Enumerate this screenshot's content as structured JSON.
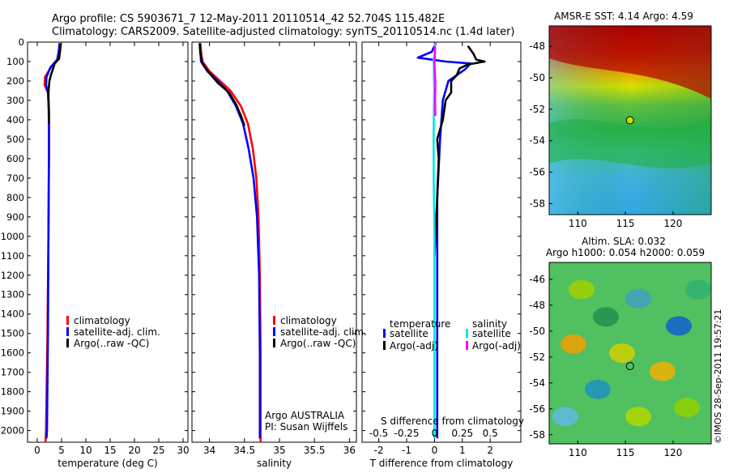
{
  "header": {
    "line1": "Argo profile: CS 5903671_7 12-May-2011 20110514_42 52.704S 115.482E",
    "line2": "Climatology: CARS2009. Satellite-adjusted climatology: synTS_20110514.nc (1.4d later)"
  },
  "footer_credit": "©IMOS 28-Sep-2011 19:57:21",
  "colors": {
    "climatology": "#ff0000",
    "satellite": "#0000ff",
    "argo": "#000000",
    "s_satellite": "#00e5e5",
    "s_argo": "#ff00ff"
  },
  "chart_data": [
    {
      "type": "line",
      "name_id": "temperature-panel",
      "xlabel": "temperature (deg C)",
      "xlim": [
        -2,
        31
      ],
      "ylim": [
        2060,
        0
      ],
      "xticks": [
        "0",
        "5",
        "10",
        "15",
        "20",
        "25",
        "30"
      ],
      "xtick_values": [
        0,
        5,
        10,
        15,
        20,
        25,
        30
      ],
      "yticks": [
        "0",
        "100",
        "200",
        "300",
        "400",
        "500",
        "600",
        "700",
        "800",
        "900",
        "1000",
        "1100",
        "1200",
        "1300",
        "1400",
        "1500",
        "1600",
        "1700",
        "1800",
        "1900",
        "2000"
      ],
      "ytick_values": [
        0,
        100,
        200,
        300,
        400,
        500,
        600,
        700,
        800,
        900,
        1000,
        1100,
        1200,
        1300,
        1400,
        1500,
        1600,
        1700,
        1800,
        1900,
        2000
      ],
      "legend": [
        "climatology",
        "satellite-adj. clim.",
        "Argo(..raw -QC)"
      ],
      "series": [
        {
          "name": "climatology",
          "color": "#ff0000",
          "points": [
            [
              4.9,
              5
            ],
            [
              4.7,
              50
            ],
            [
              4.3,
              90
            ],
            [
              2.8,
              130
            ],
            [
              1.6,
              180
            ],
            [
              1.5,
              220
            ],
            [
              2.2,
              260
            ],
            [
              2.4,
              350
            ],
            [
              2.4,
              600
            ],
            [
              2.3,
              1000
            ],
            [
              2.1,
              1500
            ],
            [
              1.8,
              2000
            ],
            [
              1.7,
              2060
            ]
          ]
        },
        {
          "name": "satellite-adj. clim.",
          "color": "#0000ff",
          "points": [
            [
              4.6,
              5
            ],
            [
              4.4,
              50
            ],
            [
              4.1,
              90
            ],
            [
              2.7,
              130
            ],
            [
              1.9,
              180
            ],
            [
              1.8,
              220
            ],
            [
              2.2,
              260
            ],
            [
              2.4,
              350
            ],
            [
              2.4,
              600
            ],
            [
              2.3,
              1000
            ],
            [
              2.2,
              1500
            ],
            [
              2.0,
              2000
            ],
            [
              1.9,
              2040
            ]
          ]
        },
        {
          "name": "Argo(..raw -QC)",
          "color": "#000000",
          "points": [
            [
              4.7,
              10
            ],
            [
              4.6,
              60
            ],
            [
              4.5,
              85
            ],
            [
              3.6,
              110
            ],
            [
              3.2,
              140
            ],
            [
              2.8,
              170
            ],
            [
              2.5,
              200
            ],
            [
              2.3,
              260
            ],
            [
              2.4,
              420
            ]
          ]
        }
      ]
    },
    {
      "type": "line",
      "name_id": "salinity-panel",
      "xlabel": "salinity",
      "xlim": [
        33.75,
        36.1
      ],
      "ylim": [
        2060,
        0
      ],
      "xticks": [
        "34",
        "34.5",
        "35",
        "35.5",
        "36"
      ],
      "xtick_values": [
        34,
        34.5,
        35,
        35.5,
        36
      ],
      "legend": [
        "climatology",
        "satellite-adj. clim.",
        "Argo(..raw -QC)"
      ],
      "annotation": [
        "Argo AUSTRALIA",
        "PI: Susan Wijffels"
      ],
      "series": [
        {
          "name": "climatology",
          "color": "#ff0000",
          "points": [
            [
              33.87,
              5
            ],
            [
              33.88,
              50
            ],
            [
              33.9,
              100
            ],
            [
              34.0,
              150
            ],
            [
              34.15,
              200
            ],
            [
              34.3,
              250
            ],
            [
              34.45,
              330
            ],
            [
              34.55,
              420
            ],
            [
              34.62,
              550
            ],
            [
              34.67,
              700
            ],
            [
              34.7,
              900
            ],
            [
              34.72,
              1200
            ],
            [
              34.73,
              1600
            ],
            [
              34.73,
              2000
            ],
            [
              34.73,
              2060
            ]
          ]
        },
        {
          "name": "satellite-adj. clim.",
          "color": "#0000ff",
          "points": [
            [
              33.86,
              5
            ],
            [
              33.87,
              50
            ],
            [
              33.88,
              100
            ],
            [
              33.97,
              150
            ],
            [
              34.12,
              200
            ],
            [
              34.25,
              250
            ],
            [
              34.38,
              330
            ],
            [
              34.48,
              420
            ],
            [
              34.56,
              550
            ],
            [
              34.63,
              700
            ],
            [
              34.68,
              900
            ],
            [
              34.71,
              1200
            ],
            [
              34.72,
              1600
            ],
            [
              34.72,
              2000
            ],
            [
              34.72,
              2040
            ]
          ]
        },
        {
          "name": "Argo(..raw -QC)",
          "color": "#000000",
          "points": [
            [
              33.86,
              10
            ],
            [
              33.87,
              60
            ],
            [
              33.9,
              110
            ],
            [
              34.0,
              160
            ],
            [
              34.12,
              210
            ],
            [
              34.28,
              260
            ],
            [
              34.38,
              320
            ],
            [
              34.45,
              380
            ],
            [
              34.5,
              430
            ]
          ]
        }
      ]
    },
    {
      "type": "line",
      "name_id": "difference-panel",
      "xlabel": "T difference from climatology",
      "xlabel_top": "S difference from climatology",
      "xlim": [
        -2.6,
        3.1
      ],
      "ylim": [
        2060,
        0
      ],
      "xticks": [
        "-2",
        "-1",
        "0",
        "1",
        "2"
      ],
      "xtick_values": [
        -2,
        -1,
        0,
        1,
        2
      ],
      "s_xticks": [
        "-0.5",
        "-0.25",
        "0",
        "0.25",
        "0.5"
      ],
      "s_xtick_values": [
        -0.5,
        -0.25,
        0,
        0.25,
        0.5
      ],
      "legend_titles": [
        "temperature",
        "salinity"
      ],
      "legend": [
        "satellite",
        "Argo(-adj)",
        "satellite",
        "Argo(-adj)"
      ],
      "series": [
        {
          "name": "T satellite",
          "color": "#0000ff",
          "points": [
            [
              0.05,
              5
            ],
            [
              -0.1,
              50
            ],
            [
              -0.6,
              80
            ],
            [
              -0.1,
              90
            ],
            [
              0.4,
              100
            ],
            [
              1.3,
              110
            ],
            [
              1.1,
              140
            ],
            [
              0.5,
              200
            ],
            [
              0.3,
              300
            ],
            [
              0.2,
              500
            ],
            [
              0.1,
              800
            ],
            [
              0.1,
              1200
            ],
            [
              0.1,
              1600
            ],
            [
              0.1,
              2040
            ]
          ]
        },
        {
          "name": "T Argo(-adj)",
          "color": "#000000",
          "points": [
            [
              1.2,
              20
            ],
            [
              1.4,
              60
            ],
            [
              1.5,
              90
            ],
            [
              1.8,
              100
            ],
            [
              1.2,
              115
            ],
            [
              0.9,
              135
            ],
            [
              0.8,
              170
            ],
            [
              0.6,
              200
            ],
            [
              0.6,
              260
            ],
            [
              0.4,
              300
            ],
            [
              0.3,
              400
            ],
            [
              0.2,
              450
            ],
            [
              0.1,
              500
            ],
            [
              0.15,
              600
            ],
            [
              0.1,
              800
            ],
            [
              0.0,
              1100
            ]
          ]
        },
        {
          "name": "S satellite",
          "color": "#00e5e5",
          "points": [
            [
              0.01,
              5
            ],
            [
              0.02,
              60
            ],
            [
              -0.03,
              90
            ],
            [
              -0.02,
              120
            ],
            [
              -0.02,
              180
            ],
            [
              -0.01,
              250
            ],
            [
              -0.02,
              350
            ],
            [
              -0.03,
              500
            ],
            [
              -0.03,
              700
            ],
            [
              0.0,
              1000
            ],
            [
              0.0,
              1500
            ],
            [
              0.0,
              2000
            ],
            [
              0.0,
              2040
            ]
          ]
        },
        {
          "name": "S Argo(-adj)",
          "color": "#ff00ff",
          "points": [
            [
              0.02,
              20
            ],
            [
              0.01,
              80
            ],
            [
              0.0,
              120
            ],
            [
              0.03,
              200
            ],
            [
              0.02,
              300
            ],
            [
              0.03,
              380
            ]
          ]
        }
      ]
    },
    {
      "type": "heatmap",
      "name_id": "sst-map",
      "title": "AMSR-E SST: 4.14 Argo: 4.59",
      "xticks": [
        "110",
        "115",
        "120"
      ],
      "xtick_values": [
        110,
        115,
        120
      ],
      "yticks": [
        "-48",
        "-50",
        "-52",
        "-54",
        "-56",
        "-58"
      ],
      "ytick_values": [
        -48,
        -50,
        -52,
        -54,
        -56,
        -58
      ],
      "xlim": [
        107,
        124
      ],
      "ylim": [
        -58.7,
        -46.7
      ],
      "marker": [
        115.48,
        -52.7
      ],
      "value": 4.14
    },
    {
      "type": "heatmap",
      "name_id": "sla-map",
      "title": "Altim. SLA: 0.032",
      "title2": "Argo h1000: 0.054 h2000: 0.059",
      "xticks": [
        "110",
        "115",
        "120"
      ],
      "xtick_values": [
        110,
        115,
        120
      ],
      "yticks": [
        "-46",
        "-48",
        "-50",
        "-52",
        "-54",
        "-56",
        "-58"
      ],
      "ytick_values": [
        -46,
        -48,
        -50,
        -52,
        -54,
        -56,
        -58
      ],
      "xlim": [
        107,
        124
      ],
      "ylim": [
        -58.7,
        -44.7
      ],
      "marker": [
        115.48,
        -52.7
      ],
      "value": 0.032
    }
  ]
}
